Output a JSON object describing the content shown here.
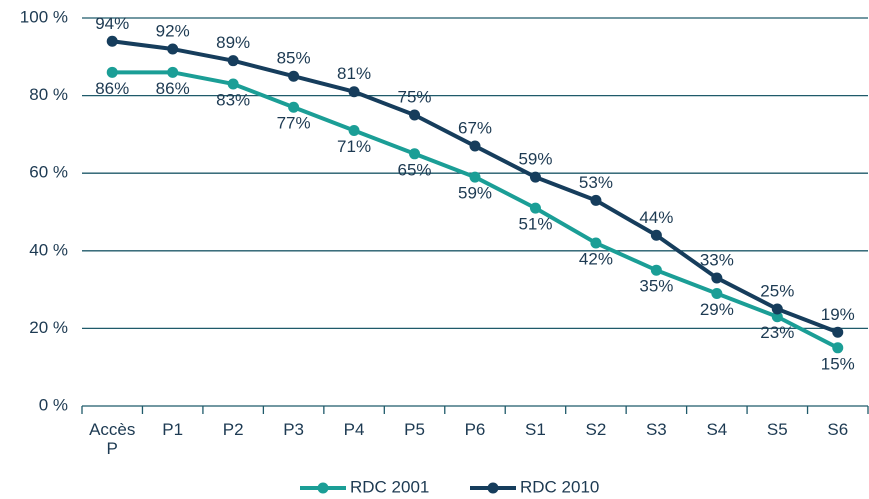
{
  "chart_data": {
    "type": "line",
    "categories": [
      "Accès P",
      "P1",
      "P2",
      "P3",
      "P4",
      "P5",
      "P6",
      "S1",
      "S2",
      "S3",
      "S4",
      "S5",
      "S6"
    ],
    "series": [
      {
        "name": "RDC 2001",
        "color": "#1b9e96",
        "values": [
          86,
          86,
          83,
          77,
          71,
          65,
          59,
          51,
          42,
          35,
          29,
          23,
          15
        ],
        "value_labels": [
          "86%",
          "86%",
          "83%",
          "77%",
          "71%",
          "65%",
          "59%",
          "51%",
          "42%",
          "35%",
          "29%",
          "23%",
          "15%"
        ]
      },
      {
        "name": "RDC 2010",
        "color": "#163d5c",
        "values": [
          94,
          92,
          89,
          85,
          81,
          75,
          67,
          59,
          53,
          44,
          33,
          25,
          19
        ],
        "value_labels": [
          "94%",
          "92%",
          "89%",
          "85%",
          "81%",
          "75%",
          "67%",
          "59%",
          "53%",
          "44%",
          "33%",
          "25%",
          "19%"
        ]
      }
    ],
    "ylim": [
      0,
      100
    ],
    "yticks": [
      {
        "value": 0,
        "label": "0 %"
      },
      {
        "value": 20,
        "label": "20 %"
      },
      {
        "value": 40,
        "label": "40 %"
      },
      {
        "value": 60,
        "label": "60 %"
      },
      {
        "value": 80,
        "label": "80 %"
      },
      {
        "value": 100,
        "label": "100 %"
      }
    ],
    "grid": true,
    "legend": "bottom"
  }
}
